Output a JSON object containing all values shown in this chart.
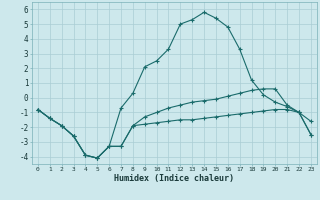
{
  "background_color": "#cde8ec",
  "grid_color": "#aacdd4",
  "line_color": "#1a6b6b",
  "xlabel": "Humidex (Indice chaleur)",
  "xlim": [
    -0.5,
    23.5
  ],
  "ylim": [
    -4.5,
    6.5
  ],
  "xticks": [
    0,
    1,
    2,
    3,
    4,
    5,
    6,
    7,
    8,
    9,
    10,
    11,
    12,
    13,
    14,
    15,
    16,
    17,
    18,
    19,
    20,
    21,
    22,
    23
  ],
  "yticks": [
    -4,
    -3,
    -2,
    -1,
    0,
    1,
    2,
    3,
    4,
    5,
    6
  ],
  "line1_x": [
    0,
    1,
    2,
    3,
    4,
    5,
    6,
    7,
    8,
    9,
    10,
    11,
    12,
    13,
    14,
    15,
    16,
    17,
    18,
    19,
    20,
    21,
    22,
    23
  ],
  "line1_y": [
    -0.8,
    -1.4,
    -1.9,
    -2.6,
    -3.9,
    -4.1,
    -3.3,
    -3.3,
    -1.9,
    -1.8,
    -1.7,
    -1.6,
    -1.5,
    -1.5,
    -1.4,
    -1.3,
    -1.2,
    -1.1,
    -1.0,
    -0.9,
    -0.8,
    -0.8,
    -1.0,
    -2.5
  ],
  "line2_x": [
    0,
    1,
    2,
    3,
    4,
    5,
    6,
    7,
    8,
    9,
    10,
    11,
    12,
    13,
    14,
    15,
    16,
    17,
    18,
    19,
    20,
    21,
    22,
    23
  ],
  "line2_y": [
    -0.8,
    -1.4,
    -1.9,
    -2.6,
    -3.9,
    -4.1,
    -3.3,
    -0.7,
    0.3,
    2.1,
    2.5,
    3.3,
    5.0,
    5.3,
    5.8,
    5.4,
    4.8,
    3.3,
    1.2,
    0.2,
    -0.3,
    -0.6,
    -1.0,
    -1.6
  ],
  "line3_x": [
    0,
    1,
    2,
    3,
    4,
    5,
    6,
    7,
    8,
    9,
    10,
    11,
    12,
    13,
    14,
    15,
    16,
    17,
    18,
    19,
    20,
    21,
    22,
    23
  ],
  "line3_y": [
    -0.8,
    -1.4,
    -1.9,
    -2.6,
    -3.9,
    -4.1,
    -3.3,
    -3.3,
    -1.9,
    -1.3,
    -1.0,
    -0.7,
    -0.5,
    -0.3,
    -0.2,
    -0.1,
    0.1,
    0.3,
    0.5,
    0.6,
    0.6,
    -0.5,
    -1.0,
    -2.5
  ]
}
